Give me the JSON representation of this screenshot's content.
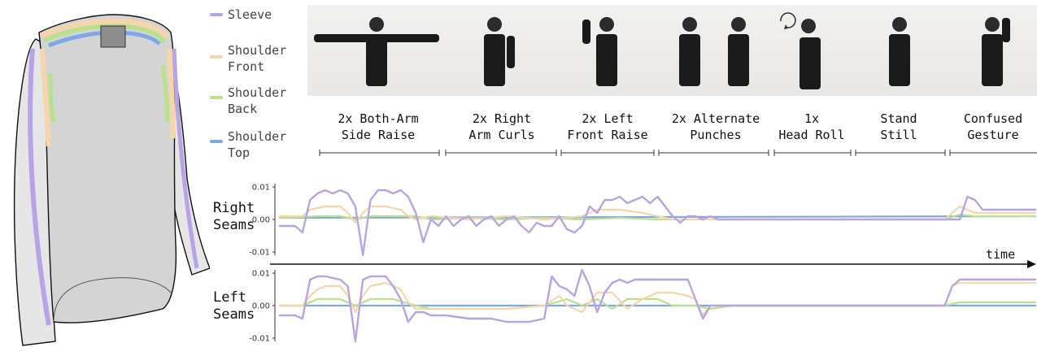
{
  "legend": [
    {
      "label": "Sleeve",
      "color": "#b8a3e6"
    },
    {
      "label": "Shoulder Front",
      "color": "#f6d6a9"
    },
    {
      "label": "Shoulder Back",
      "color": "#b6e28a"
    },
    {
      "label": "Shoulder Top",
      "color": "#7da7e6"
    }
  ],
  "activities": [
    {
      "line1": "2x Both-Arm",
      "line2": "Side Raise"
    },
    {
      "line1": "2x Right",
      "line2": "Arm Curls"
    },
    {
      "line1": "2x Left",
      "line2": "Front Raise"
    },
    {
      "line1": "2x Alternate",
      "line2": "Punches"
    },
    {
      "line1": "1x",
      "line2": "Head Roll"
    },
    {
      "line1": "Stand",
      "line2": "Still"
    },
    {
      "line1": "Confused",
      "line2": "Gesture"
    }
  ],
  "time_label": "time",
  "chart_data": [
    {
      "type": "line",
      "ylabel": "Right Seams",
      "yticks": [
        "0.01",
        "0.00",
        "-0.01"
      ],
      "ylim": [
        -0.0115,
        0.0115
      ],
      "xlim": [
        0,
        100
      ],
      "series": [
        {
          "name": "Sleeve",
          "color": "#b8a3e6",
          "x": [
            0,
            2,
            3,
            4,
            5,
            6,
            7,
            8,
            9,
            10,
            11,
            12,
            13,
            14,
            15,
            16,
            17,
            18,
            19,
            20,
            21,
            22,
            23,
            24,
            25,
            26,
            27,
            28,
            29,
            30,
            31,
            32,
            33,
            34,
            35,
            36,
            37,
            38,
            39,
            40,
            41,
            42,
            43,
            44,
            45,
            46,
            47,
            48,
            49,
            50,
            51,
            52,
            53,
            54,
            55,
            56,
            57,
            58,
            59,
            60,
            61,
            62,
            63,
            64,
            65,
            66,
            67,
            68,
            69,
            70,
            71,
            72,
            73,
            74,
            75,
            76,
            77,
            78,
            79,
            80,
            81,
            82,
            83,
            84,
            85,
            86,
            87,
            88,
            89,
            90,
            91,
            92,
            93,
            94,
            95,
            96,
            97,
            98,
            99,
            100
          ],
          "y": [
            -0.002,
            -0.002,
            -0.004,
            0.006,
            0.008,
            0.009,
            0.008,
            0.009,
            0.008,
            0.004,
            -0.011,
            0.006,
            0.009,
            0.009,
            0.008,
            0.009,
            0.007,
            0.002,
            -0.007,
            0.0,
            -0.002,
            0.001,
            -0.002,
            0.0,
            0.001,
            -0.002,
            0.0,
            0.001,
            -0.002,
            0.0,
            0.001,
            -0.002,
            -0.004,
            -0.001,
            -0.002,
            -0.002,
            0.001,
            -0.003,
            -0.004,
            -0.002,
            0.004,
            0.002,
            0.006,
            0.006,
            0.007,
            0.005,
            0.006,
            0.007,
            0.005,
            0.007,
            0.004,
            0.001,
            -0.001,
            0.001,
            0.001,
            0.0,
            0.001,
            0.0,
            0.0,
            0.0,
            0.0,
            0.0,
            0.0,
            0.0,
            0.0,
            0.0,
            0.0,
            0.0,
            0.0,
            0.0,
            0.0,
            0.0,
            0.0,
            0.0,
            0.0,
            0.0,
            0.0,
            0.0,
            0.0,
            0.0,
            0.0,
            0.0,
            0.0,
            0.0,
            0.0,
            0.0,
            0.0,
            0.0,
            0.0,
            0.0,
            0.007,
            0.006,
            0.003,
            0.003,
            0.003,
            0.003,
            0.003,
            0.003,
            0.003,
            0.003
          ]
        },
        {
          "name": "Shoulder Front",
          "color": "#f6d6a9",
          "x": [
            0,
            3,
            4,
            6,
            8,
            9,
            10,
            11,
            12,
            14,
            16,
            17,
            18,
            20,
            25,
            30,
            35,
            40,
            42,
            45,
            48,
            50,
            52,
            55,
            60,
            70,
            80,
            88,
            89,
            90,
            92,
            95,
            100
          ],
          "y": [
            0.001,
            0.001,
            0.003,
            0.004,
            0.004,
            0.002,
            -0.001,
            0.002,
            0.004,
            0.004,
            0.003,
            0.001,
            0.0,
            0.001,
            0.0,
            0.001,
            0.0,
            0.001,
            0.003,
            0.003,
            0.002,
            0.001,
            0.0,
            0.0,
            0.0,
            0.0,
            0.0,
            0.0,
            0.002,
            0.004,
            0.002,
            0.002,
            0.002
          ]
        },
        {
          "name": "Shoulder Back",
          "color": "#b6e28a",
          "x": [
            0,
            3,
            5,
            8,
            10,
            12,
            15,
            18,
            20,
            25,
            30,
            35,
            40,
            45,
            50,
            52,
            55,
            60,
            70,
            80,
            88,
            90,
            92,
            95,
            100
          ],
          "y": [
            0.0005,
            0.0007,
            0.001,
            0.001,
            0.0,
            0.001,
            0.001,
            0.001,
            0.0,
            0.0005,
            0.0,
            0.0005,
            0.0,
            0.0005,
            0.0,
            0.0,
            0.0,
            0.0,
            0.0,
            0.0,
            0.0,
            0.0015,
            0.001,
            0.001,
            0.001
          ]
        },
        {
          "name": "Shoulder Top",
          "color": "#7da7e6",
          "x": [
            0,
            100
          ],
          "y": [
            0.0005,
            0.001
          ]
        }
      ]
    },
    {
      "type": "line",
      "ylabel": "Left Seams",
      "yticks": [
        "0.01",
        "0.00",
        "-0.01"
      ],
      "ylim": [
        -0.0115,
        0.0115
      ],
      "xlim": [
        0,
        100
      ],
      "series": [
        {
          "name": "Sleeve",
          "color": "#b8a3e6",
          "x": [
            0,
            2,
            3,
            4,
            5,
            6,
            8,
            9,
            10,
            11,
            12,
            13,
            14,
            15,
            16,
            17,
            18,
            19,
            20,
            22,
            25,
            28,
            30,
            33,
            35,
            36,
            37,
            38,
            39,
            40,
            41,
            42,
            43,
            44,
            45,
            46,
            47,
            48,
            50,
            52,
            54,
            55,
            56,
            57,
            58,
            60,
            65,
            70,
            80,
            88,
            89,
            90,
            92,
            95,
            100
          ],
          "y": [
            -0.003,
            -0.003,
            -0.004,
            0.008,
            0.009,
            0.009,
            0.008,
            0.006,
            -0.011,
            0.008,
            0.009,
            0.009,
            0.009,
            0.006,
            0.002,
            -0.005,
            -0.002,
            -0.002,
            -0.003,
            -0.003,
            -0.004,
            -0.004,
            -0.005,
            -0.005,
            -0.004,
            0.009,
            0.006,
            0.005,
            0.003,
            0.011,
            0.006,
            -0.002,
            0.004,
            0.007,
            0.008,
            0.007,
            0.008,
            0.008,
            0.008,
            0.008,
            0.008,
            0.002,
            -0.004,
            0.0,
            0.0,
            0.0,
            0.0,
            0.0,
            0.0,
            0.0,
            0.006,
            0.008,
            0.008,
            0.008,
            0.008
          ]
        },
        {
          "name": "Shoulder Front",
          "color": "#f6d6a9",
          "x": [
            0,
            3,
            4,
            5,
            6,
            8,
            9,
            10,
            11,
            12,
            14,
            16,
            17,
            18,
            20,
            25,
            30,
            35,
            37,
            38,
            40,
            42,
            44,
            46,
            48,
            50,
            52,
            54,
            55,
            56,
            57,
            58,
            60,
            70,
            80,
            88,
            89,
            90,
            92,
            95,
            100
          ],
          "y": [
            0.0,
            0.0,
            0.003,
            0.005,
            0.006,
            0.006,
            0.003,
            -0.002,
            0.003,
            0.006,
            0.007,
            0.005,
            0.001,
            -0.001,
            -0.001,
            -0.001,
            -0.001,
            0.0,
            0.003,
            0.0,
            -0.002,
            0.004,
            0.004,
            -0.001,
            0.002,
            0.004,
            0.004,
            0.003,
            0.002,
            -0.003,
            0.0,
            0.0,
            0.0,
            0.0,
            0.0,
            0.0,
            0.006,
            0.007,
            0.007,
            0.007,
            0.007
          ]
        },
        {
          "name": "Shoulder Back",
          "color": "#b6e28a",
          "x": [
            0,
            3,
            5,
            8,
            10,
            12,
            15,
            18,
            20,
            25,
            30,
            35,
            38,
            40,
            42,
            44,
            46,
            48,
            50,
            52,
            55,
            57,
            60,
            70,
            80,
            88,
            90,
            92,
            95,
            100
          ],
          "y": [
            0.0,
            0.0,
            0.002,
            0.002,
            0.0,
            0.002,
            0.002,
            0.0,
            -0.001,
            -0.001,
            -0.001,
            0.0,
            0.002,
            0.0,
            0.002,
            -0.001,
            0.002,
            0.002,
            0.002,
            0.0,
            0.0,
            -0.001,
            0.0,
            0.0,
            0.0,
            0.0,
            0.001,
            0.001,
            0.001,
            0.001
          ]
        },
        {
          "name": "Shoulder Top",
          "color": "#7da7e6",
          "x": [
            0,
            100
          ],
          "y": [
            0.0,
            0.0
          ]
        }
      ]
    }
  ]
}
